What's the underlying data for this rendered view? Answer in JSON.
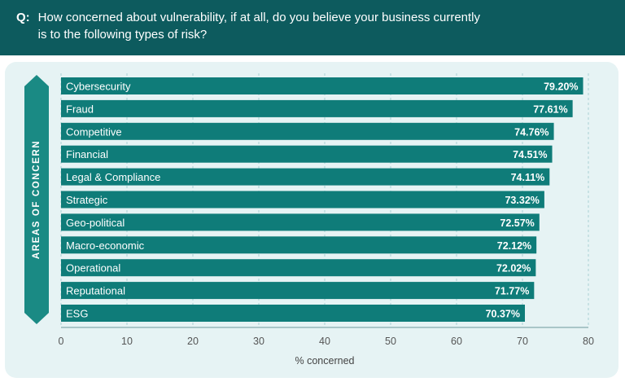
{
  "question": {
    "prefix": "Q:",
    "text_line1": "How concerned about vulnerability, if at all, do you believe your business currently",
    "text_line2": "is to the following types of risk?"
  },
  "side_label": "AREAS OF CONCERN",
  "colors": {
    "header_bg": "#0d5b5e",
    "panel_bg": "#e6f3f4",
    "bar": "#0f7c79",
    "side_arrow": "#1a8a84"
  },
  "chart_data": {
    "type": "bar",
    "orientation": "horizontal",
    "categories": [
      "Cybersecurity",
      "Fraud",
      "Competitive",
      "Financial",
      "Legal & Compliance",
      "Strategic",
      "Geo-political",
      "Macro-economic",
      "Operational",
      "Reputational",
      "ESG"
    ],
    "values": [
      79.2,
      77.61,
      74.76,
      74.51,
      74.11,
      73.32,
      72.57,
      72.12,
      72.02,
      71.77,
      70.37
    ],
    "value_labels": [
      "79.20%",
      "77.61%",
      "74.76%",
      "74.51%",
      "74.11%",
      "73.32%",
      "72.57%",
      "72.12%",
      "72.02%",
      "71.77%",
      "70.37%"
    ],
    "xlabel": "% concerned",
    "ylabel": "AREAS OF CONCERN",
    "xlim": [
      0,
      80
    ],
    "xticks": [
      0,
      10,
      20,
      30,
      40,
      50,
      60,
      70,
      80
    ],
    "grid": true
  }
}
